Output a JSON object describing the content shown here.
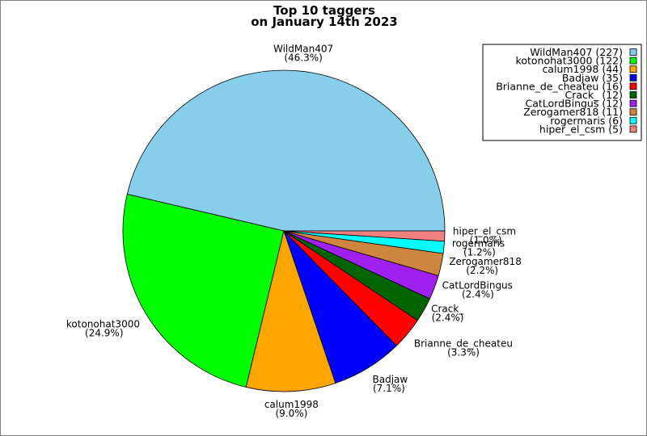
{
  "chart_data": {
    "type": "pie",
    "title": [
      "Top 10 taggers",
      "on January 14th 2023"
    ],
    "legend_position": "top-right",
    "slices": [
      {
        "label": "WildMan407",
        "value": 227,
        "percent": "(46.3%)",
        "legend": "WildMan407 (227)",
        "color": "#87ceeb"
      },
      {
        "label": "kotonohat3000",
        "value": 122,
        "percent": "(24.9%)",
        "legend": "kotonohat3000 (122)",
        "color": "#00ff00"
      },
      {
        "label": "calum1998",
        "value": 44,
        "percent": "(9.0%)",
        "legend": "calum1998 (44)",
        "color": "#ffa500"
      },
      {
        "label": "Badjaw",
        "value": 35,
        "percent": "(7.1%)",
        "legend": "Badjaw (35)",
        "color": "#0000ff"
      },
      {
        "label": "Brianne_de_cheateu",
        "value": 16,
        "percent": "(3.3%)",
        "legend": "Brianne_de_cheateu (16)",
        "color": "#ff0000"
      },
      {
        "label": "Crack_",
        "value": 12,
        "percent": "(2.4%)",
        "legend": "Crack_ (12)",
        "color": "#006400"
      },
      {
        "label": "CatLordBingus",
        "value": 12,
        "percent": "(2.4%)",
        "legend": "CatLordBingus (12)",
        "color": "#a020f0"
      },
      {
        "label": "Zerogamer818",
        "value": 11,
        "percent": "(2.2%)",
        "legend": "Zerogamer818 (11)",
        "color": "#cd853f"
      },
      {
        "label": "rogermaris",
        "value": 6,
        "percent": "(1.2%)",
        "legend": "rogermaris (6)",
        "color": "#00ffff"
      },
      {
        "label": "hiper_el_csm",
        "value": 5,
        "percent": "(1.0%)",
        "legend": "hiper_el_csm (5)",
        "color": "#f08080"
      }
    ]
  }
}
